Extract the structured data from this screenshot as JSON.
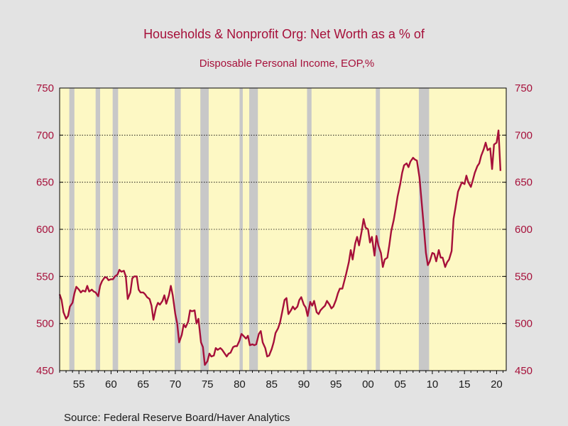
{
  "chart_data": {
    "type": "line",
    "title": "Households & Nonprofit Org: Net Worth as a % of",
    "subtitle": "Disposable Personal Income, EOP,%",
    "xlabel": "",
    "ylabel": "",
    "source": "Source:  Federal Reserve Board/Haver Analytics",
    "xlim": [
      1952.0,
      2021.5
    ],
    "ylim": [
      450,
      750
    ],
    "yticks": [
      450,
      500,
      550,
      600,
      650,
      700,
      750
    ],
    "ytick_labels": [
      "450",
      "500",
      "550",
      "600",
      "650",
      "700",
      "750"
    ],
    "xticks": [
      1955,
      1960,
      1965,
      1970,
      1975,
      1980,
      1985,
      1990,
      1995,
      2000,
      2005,
      2010,
      2015,
      2020
    ],
    "xtick_labels": [
      "55",
      "60",
      "65",
      "70",
      "75",
      "80",
      "85",
      "90",
      "95",
      "00",
      "05",
      "10",
      "15",
      "20"
    ],
    "grid": "horizontal dotted",
    "colors": {
      "plot_background": "#fdf8c4",
      "page_background": "#e3e3e3",
      "line": "#a6103a",
      "recession": "#c8c8c8",
      "text": "#a6103a"
    },
    "recessions": [
      [
        1953.5,
        1954.3
      ],
      [
        1957.6,
        1958.3
      ],
      [
        1960.25,
        1961.1
      ],
      [
        1969.9,
        1970.85
      ],
      [
        1973.9,
        1975.2
      ],
      [
        1980.0,
        1980.5
      ],
      [
        1981.5,
        1982.85
      ],
      [
        1990.5,
        1991.2
      ],
      [
        2001.2,
        2001.85
      ],
      [
        2007.9,
        2009.5
      ]
    ],
    "series": [
      {
        "values": [
          [
            1952.0,
            531
          ],
          [
            1952.3,
            525
          ],
          [
            1952.6,
            512
          ],
          [
            1953.0,
            505
          ],
          [
            1953.3,
            508
          ],
          [
            1953.6,
            518
          ],
          [
            1954.0,
            522
          ],
          [
            1954.3,
            532
          ],
          [
            1954.6,
            539
          ],
          [
            1955.0,
            536
          ],
          [
            1955.3,
            533
          ],
          [
            1955.6,
            535
          ],
          [
            1956.0,
            534
          ],
          [
            1956.3,
            540
          ],
          [
            1956.6,
            534
          ],
          [
            1957.0,
            536
          ],
          [
            1957.3,
            534
          ],
          [
            1957.6,
            533
          ],
          [
            1958.0,
            529
          ],
          [
            1958.3,
            540
          ],
          [
            1958.6,
            545
          ],
          [
            1959.0,
            549
          ],
          [
            1959.3,
            549
          ],
          [
            1959.6,
            546
          ],
          [
            1960.0,
            547
          ],
          [
            1960.3,
            547
          ],
          [
            1960.6,
            550
          ],
          [
            1961.0,
            552
          ],
          [
            1961.3,
            557
          ],
          [
            1961.6,
            555
          ],
          [
            1962.0,
            556
          ],
          [
            1962.3,
            550
          ],
          [
            1962.6,
            526
          ],
          [
            1963.0,
            533
          ],
          [
            1963.3,
            548
          ],
          [
            1963.6,
            550
          ],
          [
            1964.0,
            550
          ],
          [
            1964.3,
            536
          ],
          [
            1964.6,
            533
          ],
          [
            1965.0,
            533
          ],
          [
            1965.3,
            531
          ],
          [
            1965.6,
            528
          ],
          [
            1966.0,
            526
          ],
          [
            1966.3,
            519
          ],
          [
            1966.6,
            504
          ],
          [
            1967.0,
            517
          ],
          [
            1967.3,
            522
          ],
          [
            1967.6,
            520
          ],
          [
            1968.0,
            524
          ],
          [
            1968.3,
            530
          ],
          [
            1968.6,
            521
          ],
          [
            1969.0,
            530
          ],
          [
            1969.3,
            540
          ],
          [
            1969.6,
            530
          ],
          [
            1970.0,
            510
          ],
          [
            1970.3,
            500
          ],
          [
            1970.6,
            480
          ],
          [
            1971.0,
            488
          ],
          [
            1971.3,
            499
          ],
          [
            1971.6,
            496
          ],
          [
            1972.0,
            502
          ],
          [
            1972.3,
            514
          ],
          [
            1972.6,
            513
          ],
          [
            1973.0,
            514
          ],
          [
            1973.3,
            500
          ],
          [
            1973.6,
            505
          ],
          [
            1974.0,
            480
          ],
          [
            1974.3,
            475
          ],
          [
            1974.6,
            456
          ],
          [
            1975.0,
            460
          ],
          [
            1975.3,
            468
          ],
          [
            1975.6,
            465
          ],
          [
            1976.0,
            466
          ],
          [
            1976.3,
            474
          ],
          [
            1976.6,
            472
          ],
          [
            1977.0,
            474
          ],
          [
            1977.3,
            472
          ],
          [
            1977.6,
            469
          ],
          [
            1978.0,
            465
          ],
          [
            1978.3,
            468
          ],
          [
            1978.6,
            469
          ],
          [
            1979.0,
            475
          ],
          [
            1979.3,
            476
          ],
          [
            1979.6,
            476
          ],
          [
            1980.0,
            482
          ],
          [
            1980.3,
            489
          ],
          [
            1980.6,
            487
          ],
          [
            1981.0,
            484
          ],
          [
            1981.3,
            487
          ],
          [
            1981.6,
            477
          ],
          [
            1982.0,
            478
          ],
          [
            1982.3,
            477
          ],
          [
            1982.6,
            478
          ],
          [
            1983.0,
            489
          ],
          [
            1983.3,
            492
          ],
          [
            1983.6,
            480
          ],
          [
            1984.0,
            474
          ],
          [
            1984.3,
            465
          ],
          [
            1984.6,
            466
          ],
          [
            1985.0,
            473
          ],
          [
            1985.3,
            480
          ],
          [
            1985.6,
            490
          ],
          [
            1986.0,
            495
          ],
          [
            1986.3,
            501
          ],
          [
            1986.6,
            511
          ],
          [
            1987.0,
            525
          ],
          [
            1987.3,
            527
          ],
          [
            1987.6,
            510
          ],
          [
            1988.0,
            514
          ],
          [
            1988.3,
            518
          ],
          [
            1988.6,
            515
          ],
          [
            1989.0,
            518
          ],
          [
            1989.3,
            525
          ],
          [
            1989.6,
            528
          ],
          [
            1990.0,
            520
          ],
          [
            1990.3,
            517
          ],
          [
            1990.6,
            508
          ],
          [
            1991.0,
            523
          ],
          [
            1991.3,
            519
          ],
          [
            1991.6,
            524
          ],
          [
            1992.0,
            512
          ],
          [
            1992.3,
            510
          ],
          [
            1992.6,
            514
          ],
          [
            1993.0,
            517
          ],
          [
            1993.3,
            519
          ],
          [
            1993.6,
            524
          ],
          [
            1994.0,
            520
          ],
          [
            1994.3,
            516
          ],
          [
            1994.6,
            518
          ],
          [
            1995.0,
            525
          ],
          [
            1995.3,
            532
          ],
          [
            1995.6,
            537
          ],
          [
            1996.0,
            537
          ],
          [
            1996.3,
            545
          ],
          [
            1996.6,
            553
          ],
          [
            1997.0,
            565
          ],
          [
            1997.3,
            578
          ],
          [
            1997.6,
            568
          ],
          [
            1998.0,
            585
          ],
          [
            1998.3,
            592
          ],
          [
            1998.6,
            583
          ],
          [
            1999.0,
            598
          ],
          [
            1999.3,
            611
          ],
          [
            1999.6,
            602
          ],
          [
            2000.0,
            600
          ],
          [
            2000.3,
            586
          ],
          [
            2000.6,
            592
          ],
          [
            2001.0,
            572
          ],
          [
            2001.3,
            593
          ],
          [
            2001.6,
            583
          ],
          [
            2002.0,
            575
          ],
          [
            2002.3,
            560
          ],
          [
            2002.6,
            568
          ],
          [
            2003.0,
            570
          ],
          [
            2003.3,
            583
          ],
          [
            2003.6,
            598
          ],
          [
            2004.0,
            610
          ],
          [
            2004.3,
            622
          ],
          [
            2004.6,
            635
          ],
          [
            2005.0,
            648
          ],
          [
            2005.3,
            660
          ],
          [
            2005.6,
            668
          ],
          [
            2006.0,
            670
          ],
          [
            2006.3,
            666
          ],
          [
            2006.6,
            672
          ],
          [
            2007.0,
            676
          ],
          [
            2007.3,
            674
          ],
          [
            2007.6,
            673
          ],
          [
            2008.0,
            655
          ],
          [
            2008.3,
            632
          ],
          [
            2008.6,
            608
          ],
          [
            2009.0,
            575
          ],
          [
            2009.3,
            562
          ],
          [
            2009.6,
            566
          ],
          [
            2010.0,
            575
          ],
          [
            2010.3,
            574
          ],
          [
            2010.6,
            566
          ],
          [
            2011.0,
            578
          ],
          [
            2011.3,
            570
          ],
          [
            2011.6,
            570
          ],
          [
            2012.0,
            560
          ],
          [
            2012.3,
            565
          ],
          [
            2012.6,
            568
          ],
          [
            2013.0,
            577
          ],
          [
            2013.3,
            611
          ],
          [
            2013.6,
            623
          ],
          [
            2014.0,
            640
          ],
          [
            2014.3,
            645
          ],
          [
            2014.6,
            650
          ],
          [
            2015.0,
            648
          ],
          [
            2015.3,
            657
          ],
          [
            2015.6,
            650
          ],
          [
            2016.0,
            645
          ],
          [
            2016.3,
            652
          ],
          [
            2016.6,
            660
          ],
          [
            2017.0,
            667
          ],
          [
            2017.3,
            670
          ],
          [
            2017.6,
            678
          ],
          [
            2018.0,
            685
          ],
          [
            2018.3,
            692
          ],
          [
            2018.6,
            684
          ],
          [
            2019.0,
            686
          ],
          [
            2019.3,
            664
          ],
          [
            2019.6,
            690
          ],
          [
            2020.0,
            692
          ],
          [
            2020.3,
            705
          ],
          [
            2020.6,
            662
          ]
        ]
      }
    ]
  }
}
